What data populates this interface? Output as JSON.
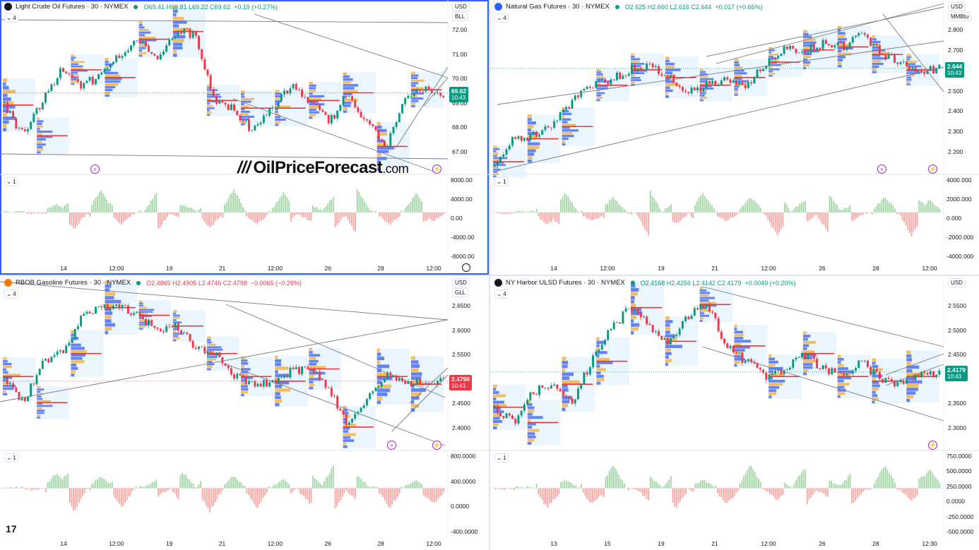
{
  "brand_watermark": {
    "slashes": "///",
    "name": "OilPriceForecast",
    "suffix": ".com"
  },
  "tradingview_logo": "17",
  "colors": {
    "up": "#089981",
    "down": "#f23645",
    "accent": "#2962ff",
    "volume_up": "#a5d6a7",
    "volume_down": "#f7a9a7",
    "profile_blue": "#4b6ef5",
    "profile_orange": "#f5b342",
    "poc": "#e53935",
    "area": "#e3f2fd"
  },
  "panes": [
    {
      "id": "cl",
      "active": true,
      "icon_color": "#131722",
      "title": "Light Crude Oil Futures · 30 · NYMEX",
      "ohlc": "O69.41 H69.81 L69.22 C69.62",
      "change": "+0.19 (+0.27%)",
      "change_dir": "up",
      "currency": "USD",
      "unit": "BLL",
      "main_collapse": "4",
      "sub_collapse": "1",
      "price_ticks": [
        "72.00",
        "71.00",
        "70.00",
        "69.00",
        "68.00",
        "67.00"
      ],
      "osc_ticks": [
        "8000.00",
        "4000.00",
        "0.00",
        "-4000.00",
        "-8000.00"
      ],
      "time_ticks": [
        "14",
        "12:00",
        "19",
        "21",
        "12:00",
        "26",
        "28",
        "12:00"
      ],
      "last_price": "69.62",
      "countdown": "10:43",
      "last_color": "#089981"
    },
    {
      "id": "ng",
      "active": false,
      "icon_color": "#2962ff",
      "title": "Natural Gas Futures · 30 · NYMEX",
      "ohlc": "O2.625 H2.660 L2.616 C2.644",
      "change": "+0.017 (+0.65%)",
      "change_dir": "up",
      "currency": "USD",
      "unit": "MMBtu",
      "main_collapse": "4",
      "sub_collapse": "1",
      "price_ticks": [
        "2.800",
        "2.700",
        "2.600",
        "2.500",
        "2.400",
        "2.300",
        "2.200"
      ],
      "osc_ticks": [
        "4000.000",
        "2000.000",
        "0.000",
        "-2000.000",
        "-4000.000"
      ],
      "time_ticks": [
        "14",
        "12:00",
        "19",
        "21",
        "12:00",
        "26",
        "28",
        "12:00"
      ],
      "last_price": "2.644",
      "countdown": "10:43",
      "last_color": "#089981"
    },
    {
      "id": "rb",
      "active": false,
      "icon_color": "#f57c00",
      "title": "RBOB Gasoline Futures · 30 · NYMEX",
      "ohlc": "O2.4865 H2.4905 L2.4746 C2.4798",
      "change": "−0.0065 (−0.26%)",
      "change_dir": "down",
      "currency": "USD",
      "unit": "GLL",
      "main_collapse": "4",
      "sub_collapse": "1",
      "price_ticks": [
        "2.6500",
        "2.6000",
        "2.5500",
        "2.5000",
        "2.4500",
        "2.4000"
      ],
      "osc_ticks": [
        "800.0000",
        "400.0000",
        "0.0000",
        "-400.0000"
      ],
      "time_ticks": [
        "14",
        "12:00",
        "19",
        "21",
        "12:00",
        "26",
        "28",
        "12:00"
      ],
      "last_price": "2.4798",
      "countdown": "10:43",
      "last_color": "#f23645"
    },
    {
      "id": "ho",
      "active": false,
      "icon_color": "#131722",
      "title": "NY Harbor ULSD Futures · 30 · NYMEX",
      "ohlc": "O2.4168 H2.4256 L2.4142 C2.4179",
      "change": "+0.0049 (+0.20%)",
      "change_dir": "up",
      "currency": "USD",
      "unit": "",
      "main_collapse": "4",
      "sub_collapse": "1",
      "price_ticks": [
        "2.5500",
        "2.5000",
        "2.4500",
        "2.4000",
        "2.3500",
        "2.3000"
      ],
      "osc_ticks": [
        "750.0000",
        "500.0000",
        "250.0000",
        "0.0000",
        "-250.0000",
        "-500.0000"
      ],
      "time_ticks": [
        "13",
        "15",
        "19",
        "21",
        "12:00",
        "26",
        "28",
        "12:30"
      ],
      "last_price": "2.4179",
      "countdown": "10:43",
      "last_color": "#089981"
    }
  ]
}
